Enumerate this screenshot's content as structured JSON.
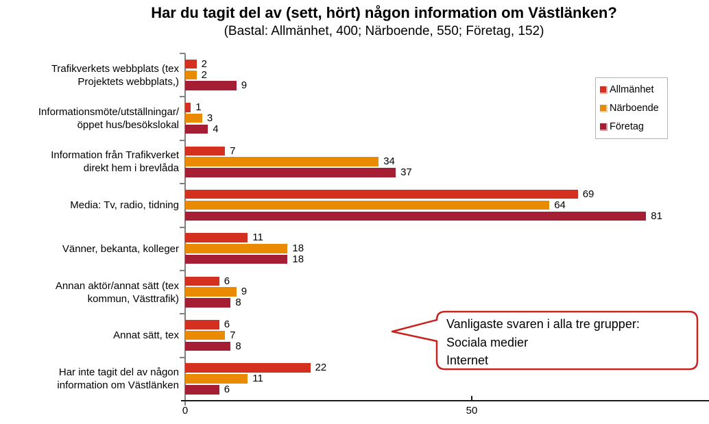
{
  "header": {
    "title": "Har du tagit del av (sett, hört) någon information om Västlänken?",
    "subtitle": "(Bastal: Allmänhet, 400; Närboende, 550; Företag, 152)"
  },
  "chart_data": {
    "type": "bar",
    "orientation": "horizontal",
    "title": "Har du tagit del av (sett, hört) någon information om Västlänken?",
    "subtitle": "(Bastal: Allmänhet, 400; Närboende, 550; Företag, 152)",
    "categories": [
      [
        "Trafikverkets webbplats (tex",
        "Projektets webbplats,)"
      ],
      [
        "Informationsmöte/utställningar/",
        "öppet hus/besökslokal"
      ],
      [
        "Information från Trafikverket",
        "direkt hem i brevlåda"
      ],
      [
        "Media: Tv, radio, tidning"
      ],
      [
        "Vänner, bekanta, kolleger"
      ],
      [
        "Annan aktör/annat sätt (tex",
        "kommun, Västtrafik)"
      ],
      [
        "Annat sätt, tex"
      ],
      [
        "Har inte tagit del av någon",
        "information om Västlänken"
      ]
    ],
    "series": [
      {
        "key": "allmanhet",
        "name": "Allmänhet",
        "color": "#D3301F",
        "light_color": "#F0A79B",
        "values": [
          2,
          1,
          7,
          69,
          11,
          6,
          6,
          22
        ]
      },
      {
        "key": "narboende",
        "name": "Närboende",
        "color": "#E98A00",
        "light_color": "#F6CB8F",
        "values": [
          2,
          3,
          34,
          64,
          18,
          9,
          7,
          11
        ]
      },
      {
        "key": "foretag",
        "name": "Företag",
        "color": "#A61E34",
        "light_color": "#D495A2",
        "values": [
          9,
          4,
          37,
          81,
          18,
          8,
          8,
          6
        ]
      }
    ],
    "x_ticks": [
      0,
      50
    ],
    "xlim": [
      0,
      91
    ],
    "grid": false,
    "legend_position": "top-right",
    "axis_color": "#808080"
  },
  "callout": {
    "lines": [
      "Vanligaste svaren i alla tre grupper:",
      "Sociala medier",
      "Internet"
    ],
    "border_color": "#C9211E"
  }
}
